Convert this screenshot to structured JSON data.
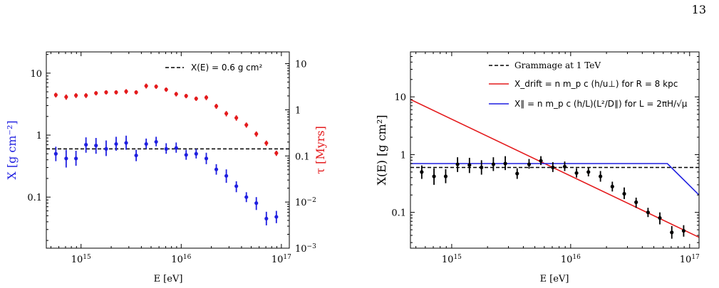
{
  "page_number": "13",
  "chart_data": [
    {
      "type": "scatter",
      "x_scale": "log",
      "y_scale": "log",
      "xlim": [
        450000000000000.0,
        1.2e+17
      ],
      "ylim": [
        0.015,
        22
      ],
      "y2lim": [
        0.001,
        18
      ],
      "xlabel": "E [eV]",
      "ylabel": "X [g cm⁻²]",
      "y2label": "τ [Myrs]",
      "x_ticks": [
        "10^15",
        "10^16",
        "10^17"
      ],
      "y_ticks": [
        "0.1",
        "1",
        "10"
      ],
      "y2_ticks": [
        "10^-3",
        "10^-2",
        "0.1",
        "1",
        "10"
      ],
      "colors": {
        "grammage": "#1f1fe0",
        "time": "#e41a1c"
      },
      "legend_position": "upper-right",
      "hline": {
        "label": "X(E) = 0.6 g cm²",
        "value": 0.6
      },
      "series": [
        {
          "axis": "left",
          "color": "#1f1fe0",
          "x": [
            560000000000000.0,
            710000000000000.0,
            890000000000000.0,
            1120000000000000.0,
            1410000000000000.0,
            1780000000000000.0,
            2240000000000000.0,
            2820000000000000.0,
            3550000000000000.0,
            4470000000000000.0,
            5620000000000000.0,
            7080000000000000.0,
            8910000000000000.0,
            1.12e+16,
            1.41e+16,
            1.78e+16,
            2.24e+16,
            2.82e+16,
            3.55e+16,
            4.47e+16,
            5.62e+16,
            7.08e+16,
            8.91e+16
          ],
          "y": [
            0.5,
            0.42,
            0.42,
            0.7,
            0.68,
            0.6,
            0.72,
            0.75,
            0.47,
            0.72,
            0.78,
            0.6,
            0.62,
            0.48,
            0.5,
            0.42,
            0.28,
            0.22,
            0.15,
            0.1,
            0.08,
            0.045,
            0.048
          ],
          "lo": [
            0.38,
            0.3,
            0.32,
            0.52,
            0.5,
            0.46,
            0.56,
            0.58,
            0.38,
            0.6,
            0.66,
            0.5,
            0.52,
            0.4,
            0.42,
            0.34,
            0.23,
            0.17,
            0.12,
            0.083,
            0.062,
            0.035,
            0.038
          ],
          "hi": [
            0.65,
            0.58,
            0.56,
            0.92,
            0.9,
            0.82,
            0.94,
            0.98,
            0.58,
            0.88,
            0.94,
            0.74,
            0.76,
            0.58,
            0.6,
            0.52,
            0.34,
            0.28,
            0.18,
            0.12,
            0.1,
            0.058,
            0.06
          ]
        },
        {
          "axis": "right",
          "color": "#e41a1c",
          "x": [
            560000000000000.0,
            710000000000000.0,
            890000000000000.0,
            1120000000000000.0,
            1410000000000000.0,
            1780000000000000.0,
            2240000000000000.0,
            2820000000000000.0,
            3550000000000000.0,
            4470000000000000.0,
            5620000000000000.0,
            7080000000000000.0,
            8910000000000000.0,
            1.12e+16,
            1.41e+16,
            1.78e+16,
            2.24e+16,
            2.82e+16,
            3.55e+16,
            4.47e+16,
            5.62e+16,
            7.08e+16,
            8.91e+16
          ],
          "y": [
            2.1,
            1.9,
            2.05,
            2.05,
            2.3,
            2.4,
            2.4,
            2.5,
            2.4,
            3.3,
            3.2,
            2.75,
            2.2,
            2.0,
            1.75,
            1.85,
            1.2,
            0.83,
            0.67,
            0.47,
            0.3,
            0.19,
            0.115
          ],
          "lo": [
            1.85,
            1.65,
            1.8,
            1.8,
            2.05,
            2.15,
            2.15,
            2.2,
            2.15,
            2.9,
            2.85,
            2.45,
            1.95,
            1.78,
            1.56,
            1.62,
            1.05,
            0.72,
            0.58,
            0.41,
            0.26,
            0.165,
            0.1
          ],
          "hi": [
            2.35,
            2.15,
            2.3,
            2.3,
            2.55,
            2.65,
            2.65,
            2.8,
            2.65,
            3.7,
            3.55,
            3.05,
            2.45,
            2.22,
            1.94,
            2.08,
            1.35,
            0.94,
            0.76,
            0.53,
            0.34,
            0.215,
            0.13
          ]
        }
      ]
    },
    {
      "type": "scatter",
      "x_scale": "log",
      "y_scale": "log",
      "xlim": [
        450000000000000.0,
        1.2e+17
      ],
      "ylim": [
        0.024,
        60
      ],
      "xlabel": "E [eV]",
      "ylabel": "X(E) [g cm²]",
      "x_ticks": [
        "10^15",
        "10^16",
        "10^17"
      ],
      "y_ticks": [
        "0.1",
        "1",
        "10"
      ],
      "legend_position": "upper-right",
      "legend": [
        {
          "label": "Grammage at 1 TeV",
          "style": "dashed",
          "color": "#000000"
        },
        {
          "label": "X_drift = n m_p c (h/u⊥) for R = 8 kpc",
          "style": "solid",
          "color": "#e41a1c"
        },
        {
          "label": "X∥ = n m_p c (h/L)(L²/D∥) for L = 2πH/√μ",
          "style": "solid",
          "color": "#1f1fe0"
        }
      ],
      "hline": {
        "value": 0.6,
        "color": "#000000"
      },
      "lines": [
        {
          "name": "drift",
          "color": "#e41a1c",
          "x": [
            450000000000000.0,
            1.2e+17
          ],
          "y": [
            9.0,
            0.037
          ]
        },
        {
          "name": "parallel",
          "color": "#1f1fe0",
          "x": [
            450000000000000.0,
            6.5e+16,
            1.2e+17
          ],
          "y": [
            0.7,
            0.7,
            0.2
          ]
        }
      ],
      "series": [
        {
          "color": "#000000",
          "x": [
            560000000000000.0,
            710000000000000.0,
            890000000000000.0,
            1120000000000000.0,
            1410000000000000.0,
            1780000000000000.0,
            2240000000000000.0,
            2820000000000000.0,
            3550000000000000.0,
            4470000000000000.0,
            5620000000000000.0,
            7080000000000000.0,
            8910000000000000.0,
            1.12e+16,
            1.41e+16,
            1.78e+16,
            2.24e+16,
            2.82e+16,
            3.55e+16,
            4.47e+16,
            5.62e+16,
            7.08e+16,
            8.91e+16
          ],
          "y": [
            0.5,
            0.42,
            0.42,
            0.68,
            0.66,
            0.6,
            0.68,
            0.7,
            0.47,
            0.68,
            0.78,
            0.6,
            0.62,
            0.48,
            0.5,
            0.42,
            0.28,
            0.21,
            0.15,
            0.1,
            0.08,
            0.045,
            0.048
          ],
          "lo": [
            0.38,
            0.3,
            0.32,
            0.5,
            0.48,
            0.45,
            0.52,
            0.54,
            0.38,
            0.57,
            0.66,
            0.5,
            0.52,
            0.4,
            0.42,
            0.34,
            0.23,
            0.17,
            0.12,
            0.083,
            0.062,
            0.035,
            0.038
          ],
          "hi": [
            0.65,
            0.58,
            0.56,
            0.9,
            0.88,
            0.8,
            0.9,
            0.94,
            0.58,
            0.84,
            0.94,
            0.74,
            0.76,
            0.58,
            0.6,
            0.52,
            0.34,
            0.27,
            0.18,
            0.12,
            0.1,
            0.058,
            0.06
          ]
        }
      ]
    }
  ]
}
